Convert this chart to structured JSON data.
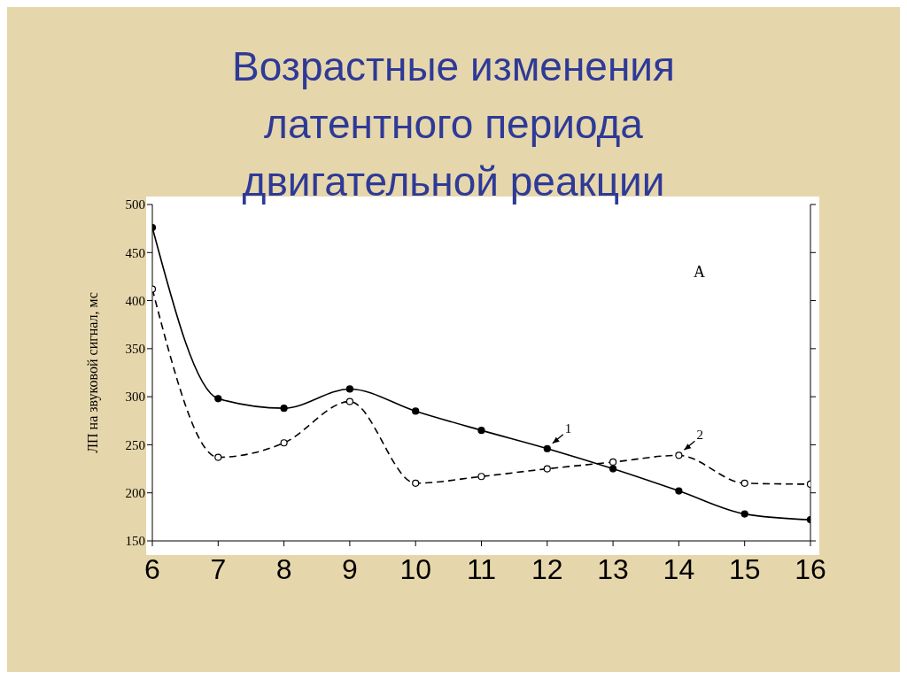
{
  "chart_data": {
    "type": "line",
    "title": "Возрастные изменения латентного периода двигательной реакции",
    "ylabel": "ЛП на звуковой сигнал, мс",
    "x": [
      6,
      7,
      8,
      9,
      10,
      11,
      12,
      13,
      14,
      15,
      16
    ],
    "xlim": [
      6,
      16
    ],
    "xticks": [
      6,
      7,
      8,
      9,
      10,
      11,
      12,
      13,
      14,
      15,
      16
    ],
    "ylim": [
      150,
      500
    ],
    "yticks": [
      150,
      200,
      250,
      300,
      350,
      400,
      450,
      500
    ],
    "annotations": [
      "А"
    ],
    "series": [
      {
        "name": "1",
        "color": "#000000",
        "line_style": "solid",
        "marker": "circle",
        "values": [
          476,
          298,
          288,
          308,
          285,
          265,
          246,
          225,
          202,
          178,
          172
        ]
      },
      {
        "name": "2",
        "color": "#000000",
        "line_style": "dashed",
        "marker": "circle",
        "values": [
          412,
          237,
          252,
          295,
          210,
          217,
          225,
          232,
          239,
          210,
          209
        ]
      }
    ]
  }
}
